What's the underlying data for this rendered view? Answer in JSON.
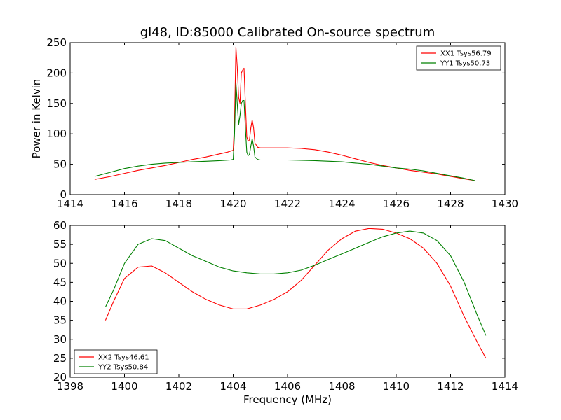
{
  "title": "gl48, ID:85000 Calibrated On-source spectrum",
  "chart_data": [
    {
      "type": "line",
      "title": "gl48, ID:85000 Calibrated On-source spectrum",
      "xlabel": "",
      "ylabel": "Power in Kelvin",
      "xlim": [
        1414,
        1430
      ],
      "ylim": [
        0,
        250
      ],
      "xticks": [
        "1414",
        "1416",
        "1418",
        "1420",
        "1422",
        "1424",
        "1426",
        "1428",
        "1430"
      ],
      "yticks": [
        "0",
        "50",
        "100",
        "150",
        "200",
        "250"
      ],
      "legend_position": "top-right",
      "series": [
        {
          "name": "XX1 Tsys56.79",
          "color": "#ff0000",
          "points": [
            [
              1414.9,
              25
            ],
            [
              1415.5,
              30
            ],
            [
              1416.0,
              35
            ],
            [
              1416.5,
              40
            ],
            [
              1417.0,
              44
            ],
            [
              1417.5,
              48
            ],
            [
              1418.0,
              53
            ],
            [
              1418.5,
              58
            ],
            [
              1419.0,
              62
            ],
            [
              1419.5,
              67
            ],
            [
              1419.8,
              70
            ],
            [
              1420.0,
              73
            ],
            [
              1420.05,
              120
            ],
            [
              1420.1,
              243
            ],
            [
              1420.15,
              210
            ],
            [
              1420.2,
              160
            ],
            [
              1420.25,
              150
            ],
            [
              1420.3,
              200
            ],
            [
              1420.35,
              205
            ],
            [
              1420.4,
              208
            ],
            [
              1420.45,
              150
            ],
            [
              1420.5,
              95
            ],
            [
              1420.55,
              88
            ],
            [
              1420.6,
              90
            ],
            [
              1420.65,
              110
            ],
            [
              1420.7,
              123
            ],
            [
              1420.75,
              110
            ],
            [
              1420.8,
              85
            ],
            [
              1420.9,
              78
            ],
            [
              1421.0,
              77
            ],
            [
              1421.5,
              77
            ],
            [
              1422.0,
              77
            ],
            [
              1422.5,
              76
            ],
            [
              1423.0,
              74
            ],
            [
              1423.5,
              70
            ],
            [
              1424.0,
              65
            ],
            [
              1424.5,
              59
            ],
            [
              1425.0,
              53
            ],
            [
              1425.5,
              48
            ],
            [
              1426.0,
              44
            ],
            [
              1426.5,
              40
            ],
            [
              1427.0,
              37
            ],
            [
              1427.5,
              34
            ],
            [
              1428.0,
              30
            ],
            [
              1428.5,
              26
            ],
            [
              1428.9,
              23
            ]
          ]
        },
        {
          "name": "YY1 Tsys50.73",
          "color": "#008000",
          "points": [
            [
              1414.9,
              30
            ],
            [
              1415.5,
              37
            ],
            [
              1416.0,
              43
            ],
            [
              1416.5,
              47
            ],
            [
              1417.0,
              50
            ],
            [
              1417.5,
              52
            ],
            [
              1418.0,
              53
            ],
            [
              1418.5,
              54
            ],
            [
              1419.0,
              55
            ],
            [
              1419.5,
              56
            ],
            [
              1419.9,
              57
            ],
            [
              1420.0,
              58
            ],
            [
              1420.05,
              100
            ],
            [
              1420.1,
              185
            ],
            [
              1420.15,
              150
            ],
            [
              1420.2,
              115
            ],
            [
              1420.25,
              130
            ],
            [
              1420.3,
              150
            ],
            [
              1420.35,
              155
            ],
            [
              1420.4,
              155
            ],
            [
              1420.45,
              110
            ],
            [
              1420.5,
              70
            ],
            [
              1420.55,
              64
            ],
            [
              1420.6,
              66
            ],
            [
              1420.65,
              80
            ],
            [
              1420.7,
              92
            ],
            [
              1420.75,
              80
            ],
            [
              1420.8,
              62
            ],
            [
              1420.9,
              58
            ],
            [
              1421.0,
              57
            ],
            [
              1422.0,
              57
            ],
            [
              1423.0,
              56
            ],
            [
              1424.0,
              54
            ],
            [
              1424.5,
              52
            ],
            [
              1425.0,
              50
            ],
            [
              1425.5,
              47
            ],
            [
              1426.0,
              44
            ],
            [
              1426.5,
              42
            ],
            [
              1427.0,
              39
            ],
            [
              1427.5,
              35
            ],
            [
              1428.0,
              31
            ],
            [
              1428.5,
              27
            ],
            [
              1428.9,
              23
            ]
          ]
        }
      ]
    },
    {
      "type": "line",
      "title": "",
      "xlabel": "Frequency (MHz)",
      "ylabel": "",
      "xlim": [
        1398,
        1414
      ],
      "ylim": [
        20,
        60
      ],
      "xticks": [
        "1398",
        "1400",
        "1402",
        "1404",
        "1406",
        "1408",
        "1410",
        "1412",
        "1414"
      ],
      "yticks": [
        "20",
        "25",
        "30",
        "35",
        "40",
        "45",
        "50",
        "55",
        "60"
      ],
      "legend_position": "bottom-left",
      "series": [
        {
          "name": "XX2 Tsys46.61",
          "color": "#ff0000",
          "points": [
            [
              1399.3,
              35
            ],
            [
              1399.6,
              40
            ],
            [
              1400.0,
              46
            ],
            [
              1400.5,
              49
            ],
            [
              1401.0,
              49.3
            ],
            [
              1401.5,
              47.5
            ],
            [
              1402.0,
              45
            ],
            [
              1402.5,
              42.5
            ],
            [
              1403.0,
              40.5
            ],
            [
              1403.5,
              39
            ],
            [
              1404.0,
              38
            ],
            [
              1404.5,
              38
            ],
            [
              1405.0,
              39
            ],
            [
              1405.5,
              40.5
            ],
            [
              1406.0,
              42.5
            ],
            [
              1406.5,
              45.5
            ],
            [
              1407.0,
              49.5
            ],
            [
              1407.5,
              53.5
            ],
            [
              1408.0,
              56.5
            ],
            [
              1408.5,
              58.5
            ],
            [
              1409.0,
              59.2
            ],
            [
              1409.5,
              59
            ],
            [
              1410.0,
              58
            ],
            [
              1410.5,
              56.5
            ],
            [
              1411.0,
              54
            ],
            [
              1411.5,
              50
            ],
            [
              1412.0,
              44
            ],
            [
              1412.5,
              36
            ],
            [
              1413.0,
              29
            ],
            [
              1413.3,
              25
            ]
          ]
        },
        {
          "name": "YY2 Tsys50.84",
          "color": "#008000",
          "points": [
            [
              1399.3,
              38.5
            ],
            [
              1399.6,
              43
            ],
            [
              1400.0,
              50
            ],
            [
              1400.5,
              55
            ],
            [
              1401.0,
              56.5
            ],
            [
              1401.5,
              56
            ],
            [
              1402.0,
              54
            ],
            [
              1402.5,
              52
            ],
            [
              1403.0,
              50.5
            ],
            [
              1403.5,
              49
            ],
            [
              1404.0,
              48
            ],
            [
              1404.5,
              47.5
            ],
            [
              1405.0,
              47.2
            ],
            [
              1405.5,
              47.2
            ],
            [
              1406.0,
              47.5
            ],
            [
              1406.5,
              48.2
            ],
            [
              1407.0,
              49.5
            ],
            [
              1407.5,
              51
            ],
            [
              1408.0,
              52.5
            ],
            [
              1408.5,
              54
            ],
            [
              1409.0,
              55.5
            ],
            [
              1409.5,
              57
            ],
            [
              1410.0,
              58
            ],
            [
              1410.5,
              58.5
            ],
            [
              1411.0,
              58
            ],
            [
              1411.5,
              56
            ],
            [
              1412.0,
              52
            ],
            [
              1412.5,
              45
            ],
            [
              1413.0,
              36
            ],
            [
              1413.3,
              31
            ]
          ]
        }
      ]
    }
  ]
}
